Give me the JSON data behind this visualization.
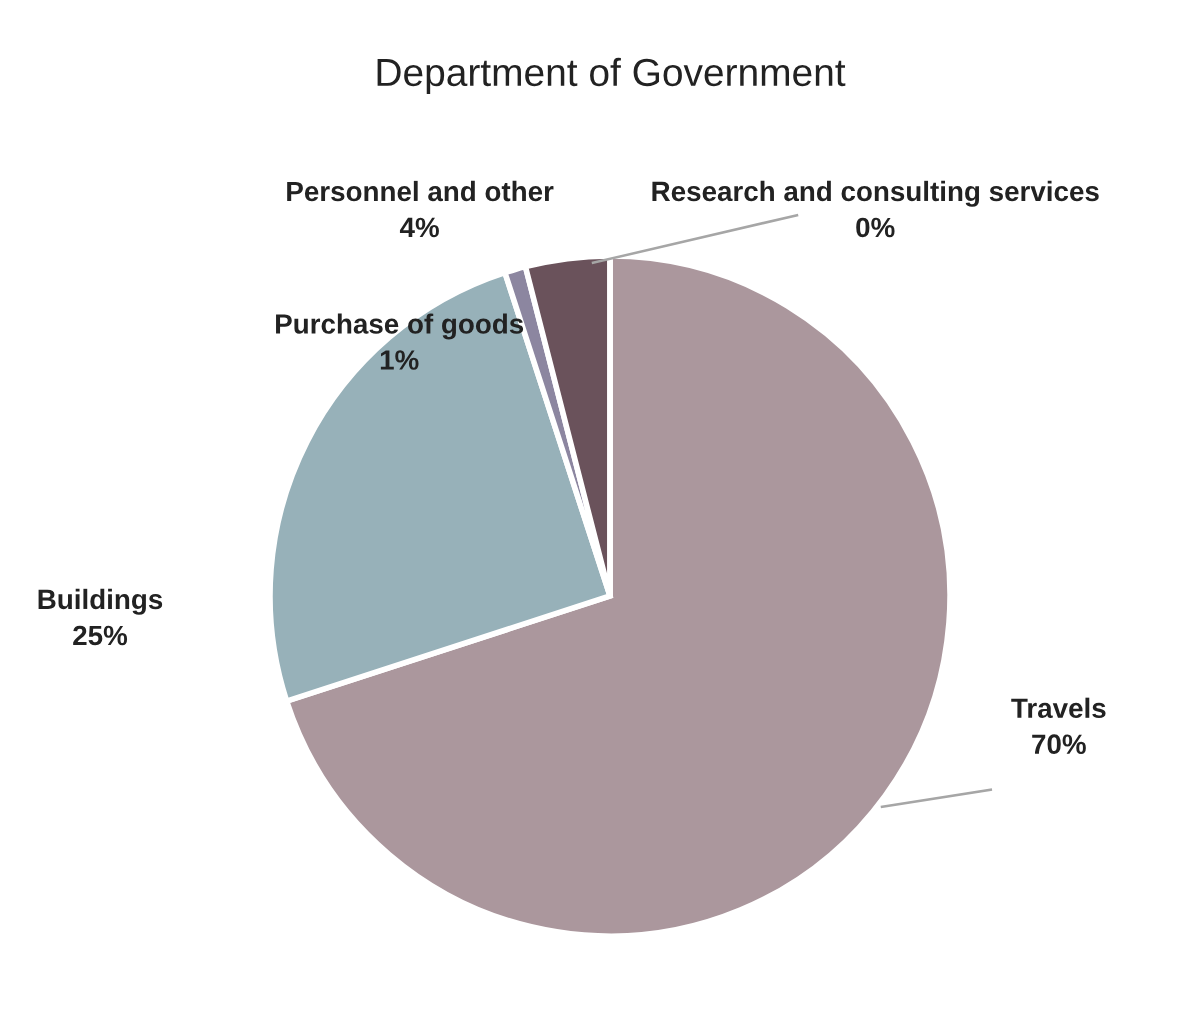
{
  "chart_data": {
    "type": "pie",
    "title": "Department of Government",
    "categories": [
      "Travels",
      "Buildings",
      "Purchase of goods",
      "Personnel and other",
      "Research and consulting services"
    ],
    "values": [
      70,
      25,
      1,
      4,
      0
    ],
    "colors": [
      "#ab979d",
      "#97b1b9",
      "#8c86a0",
      "#6a525b",
      "#5a4a50"
    ],
    "value_labels": [
      "70%",
      "25%",
      "1%",
      "4%",
      "0%"
    ],
    "legend": false
  }
}
